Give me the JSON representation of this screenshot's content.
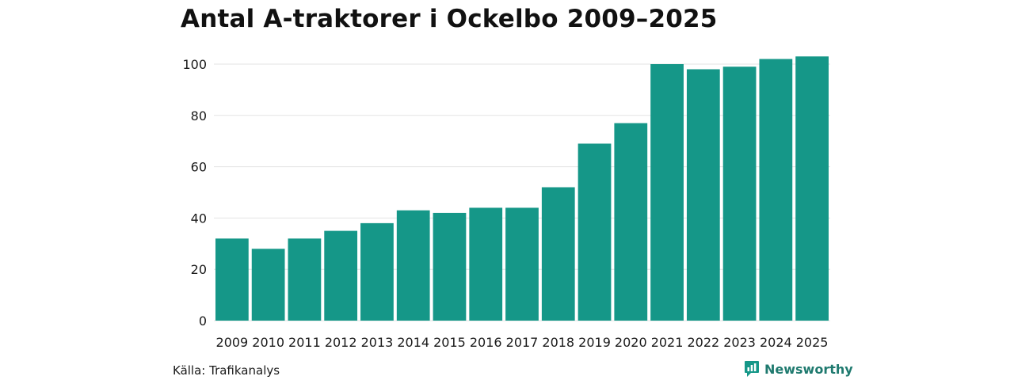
{
  "colors": {
    "bar": "#159788",
    "grid": "#e3e3e3",
    "brand": "#159788"
  },
  "chart_data": {
    "type": "bar",
    "title": "Antal A-traktorer i Ockelbo 2009–2025",
    "categories": [
      "2009",
      "2010",
      "2011",
      "2012",
      "2013",
      "2014",
      "2015",
      "2016",
      "2017",
      "2018",
      "2019",
      "2020",
      "2021",
      "2022",
      "2023",
      "2024",
      "2025"
    ],
    "values": [
      32,
      28,
      32,
      35,
      38,
      43,
      42,
      44,
      44,
      52,
      69,
      77,
      100,
      98,
      99,
      102,
      103
    ],
    "yticks": [
      0,
      20,
      40,
      60,
      80,
      100
    ],
    "ylim": [
      0,
      103
    ],
    "xlabel": "",
    "ylabel": "",
    "grid": true
  },
  "footer": {
    "source": "Källa: Trafikanalys",
    "brand_icon": "newsworthy-logo-icon",
    "brand": "Newsworthy"
  }
}
